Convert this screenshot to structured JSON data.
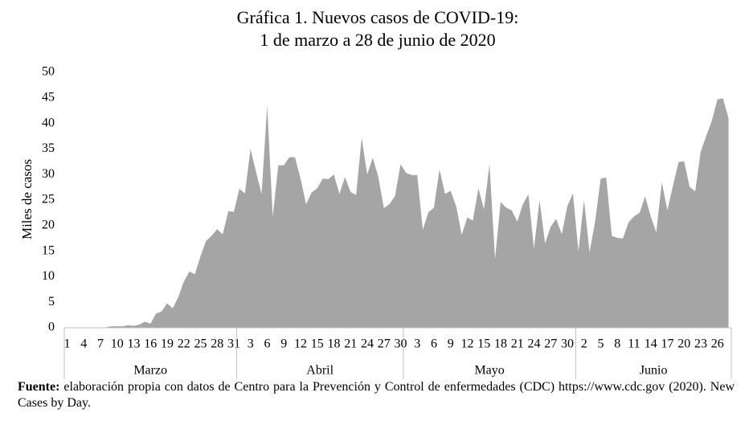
{
  "chart_data": {
    "type": "area",
    "title": [
      "Gráfica 1. Nuevos casos de COVID-19:",
      "1 de marzo a 28 de junio de 2020"
    ],
    "y_label": "Miles de casos",
    "color": "#a5a5a5",
    "ylim": [
      0,
      50
    ],
    "yticks": [
      0,
      5,
      10,
      15,
      20,
      25,
      30,
      35,
      40,
      45,
      50
    ],
    "grid": false,
    "categories": [
      "1",
      null,
      null,
      "4",
      null,
      null,
      "7",
      null,
      null,
      "10",
      null,
      null,
      "13",
      null,
      null,
      "16",
      null,
      null,
      "19",
      null,
      null,
      "22",
      null,
      null,
      "25",
      null,
      null,
      "28",
      null,
      null,
      "31",
      null,
      null,
      "3",
      null,
      null,
      "6",
      null,
      null,
      "9",
      null,
      null,
      "12",
      null,
      null,
      "15",
      null,
      null,
      "18",
      null,
      null,
      "21",
      null,
      null,
      "24",
      null,
      null,
      "27",
      null,
      null,
      "30",
      null,
      null,
      "3",
      null,
      null,
      "6",
      null,
      null,
      "9",
      null,
      null,
      "12",
      null,
      null,
      "15",
      null,
      null,
      "18",
      null,
      null,
      "21",
      null,
      null,
      "24",
      null,
      null,
      "27",
      null,
      null,
      "30",
      null,
      null,
      "2",
      null,
      null,
      "5",
      null,
      null,
      "8",
      null,
      null,
      "11",
      null,
      null,
      "14",
      null,
      null,
      "17",
      null,
      null,
      "20",
      null,
      null,
      "23",
      null,
      null,
      "26",
      null,
      null
    ],
    "values": [
      0,
      0,
      0,
      0,
      0,
      0,
      0,
      0.1,
      0.3,
      0.3,
      0.3,
      0.5,
      0.4,
      0.6,
      1.2,
      0.8,
      2.8,
      3.2,
      4.8,
      3.8,
      6,
      9,
      11,
      10.5,
      14,
      17,
      18,
      19.3,
      18.3,
      22.8,
      22.7,
      27.2,
      26.3,
      35,
      30.5,
      26.2,
      43.5,
      21.8,
      31.8,
      31.8,
      33.4,
      33.4,
      29.2,
      24.2,
      26.5,
      27.3,
      29.2,
      29.1,
      30,
      26.2,
      29.5,
      26.6,
      26,
      37.2,
      30,
      33.3,
      29.5,
      23.4,
      24.2,
      25.8,
      32,
      30.3,
      29.9,
      29.9,
      19.2,
      22.6,
      23.5,
      31,
      26.2,
      26.8,
      23.8,
      18.2,
      21.6,
      21,
      27.3,
      23.2,
      32,
      13.5,
      24.6,
      23.5,
      23,
      20.8,
      24.2,
      26.1,
      15.5,
      25,
      16.5,
      19.8,
      21.3,
      18.3,
      23.8,
      26.3,
      15,
      25,
      14.8,
      20.8,
      29.2,
      29.4,
      18,
      17.6,
      17.5,
      20.6,
      21.8,
      22.5,
      25.7,
      21.8,
      18.7,
      28.5,
      23,
      27.8,
      32.4,
      32.6,
      27.6,
      26.7,
      34.5,
      37.6,
      40.5,
      44.7,
      44.9,
      41
    ],
    "groups": [
      {
        "name": "Marzo",
        "count": 31
      },
      {
        "name": "Abril",
        "count": 30
      },
      {
        "name": "Mayo",
        "count": 31
      },
      {
        "name": "Junio",
        "count": 28
      }
    ],
    "source_label": "Fuente:",
    "source": "elaboración propia con datos de Centro para la Prevención y Control de enfermedades (CDC) https://www.cdc.gov (2020). New Cases by Day."
  }
}
